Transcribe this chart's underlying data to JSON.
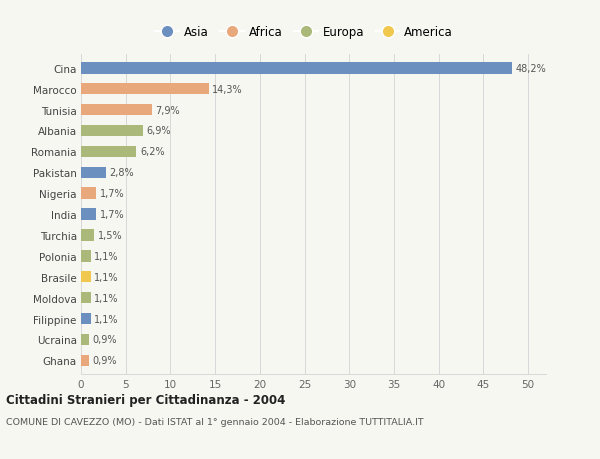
{
  "countries": [
    "Cina",
    "Marocco",
    "Tunisia",
    "Albania",
    "Romania",
    "Pakistan",
    "Nigeria",
    "India",
    "Turchia",
    "Polonia",
    "Brasile",
    "Moldova",
    "Filippine",
    "Ucraina",
    "Ghana"
  ],
  "values": [
    48.2,
    14.3,
    7.9,
    6.9,
    6.2,
    2.8,
    1.7,
    1.7,
    1.5,
    1.1,
    1.1,
    1.1,
    1.1,
    0.9,
    0.9
  ],
  "labels": [
    "48,2%",
    "14,3%",
    "7,9%",
    "6,9%",
    "6,2%",
    "2,8%",
    "1,7%",
    "1,7%",
    "1,5%",
    "1,1%",
    "1,1%",
    "1,1%",
    "1,1%",
    "0,9%",
    "0,9%"
  ],
  "continents": [
    "Asia",
    "Africa",
    "Africa",
    "Europa",
    "Europa",
    "Asia",
    "Africa",
    "Asia",
    "Europa",
    "Europa",
    "America",
    "Europa",
    "Asia",
    "Europa",
    "Africa"
  ],
  "colors": {
    "Asia": "#6b8fbe",
    "Africa": "#e8a87c",
    "Europa": "#aab87a",
    "America": "#f0c84e"
  },
  "legend_order": [
    "Asia",
    "Africa",
    "Europa",
    "America"
  ],
  "xlim": [
    0,
    52
  ],
  "xticks": [
    0,
    5,
    10,
    15,
    20,
    25,
    30,
    35,
    40,
    45,
    50
  ],
  "title": "Cittadini Stranieri per Cittadinanza - 2004",
  "subtitle": "COMUNE DI CAVEZZO (MO) - Dati ISTAT al 1° gennaio 2004 - Elaborazione TUTTITALIA.IT",
  "bg_color": "#f7f7f2",
  "grid_color": "#d8d8d8",
  "bar_height": 0.55
}
